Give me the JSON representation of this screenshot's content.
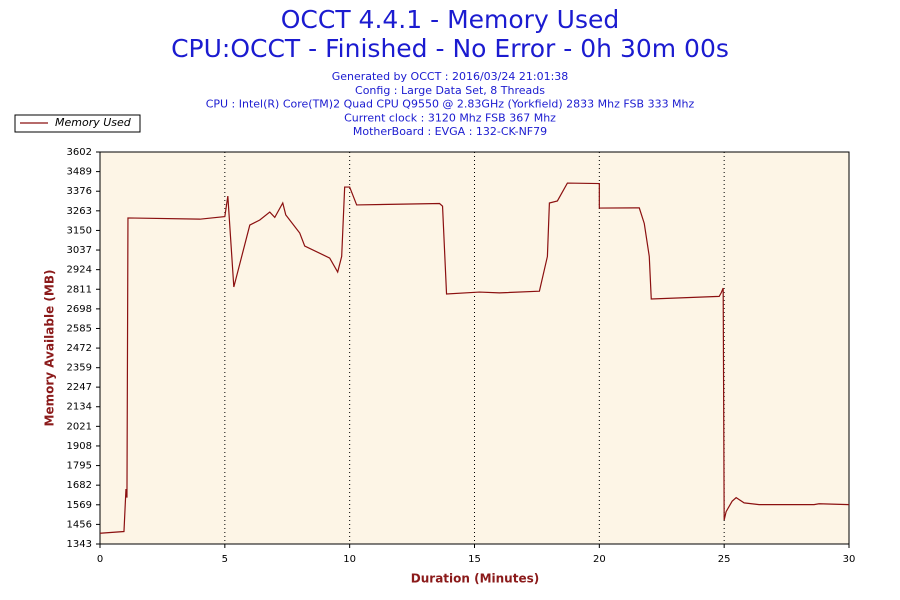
{
  "chart_data": {
    "type": "line",
    "title": "OCCT 4.4.1 - Memory Used",
    "subtitle": "CPU:OCCT - Finished - No Error - 0h 30m 00s",
    "info": [
      "Generated by OCCT : 2016/03/24 21:01:38",
      "Config : Large Data Set, 8 Threads",
      "CPU : Intel(R) Core(TM)2 Quad CPU Q9550 @ 2.83GHz (Yorkfield) 2833 Mhz FSB 333 Mhz",
      "Current clock : 3120 Mhz FSB 367 Mhz",
      "MotherBoard : EVGA : 132-CK-NF79"
    ],
    "x_label": "Duration (Minutes)",
    "y_label": "Memory Available (MB)",
    "x": [
      0,
      0.96,
      1.04,
      1.08,
      1.12,
      4.0,
      5.0,
      5.12,
      5.36,
      6.0,
      6.4,
      6.8,
      7.0,
      7.32,
      7.44,
      8.0,
      8.2,
      9.2,
      9.52,
      9.68,
      9.8,
      10.0,
      10.28,
      13.6,
      13.72,
      13.88,
      15.2,
      16.0,
      17.6,
      17.92,
      18.0,
      18.32,
      18.72,
      20.0,
      20.0,
      21.6,
      21.8,
      22.0,
      22.08,
      24.8,
      24.88,
      24.96,
      25.0,
      25.08,
      25.32,
      25.48,
      25.8,
      26.4,
      28.6,
      28.8,
      30
    ],
    "series": [
      {
        "name": "Memory Used",
        "color": "#8b1010",
        "values": [
          1405,
          1415,
          1660,
          1610,
          3222,
          3215,
          3230,
          3348,
          2824,
          3181,
          3210,
          3256,
          3225,
          3308,
          3240,
          3135,
          3060,
          2991,
          2910,
          3000,
          3400,
          3400,
          3297,
          3305,
          3290,
          2784,
          2795,
          2790,
          2800,
          3000,
          3308,
          3320,
          3423,
          3420,
          3279,
          3280,
          3190,
          3000,
          2755,
          2770,
          2790,
          2818,
          1481,
          1530,
          1590,
          1610,
          1580,
          1570,
          1570,
          1575,
          1570
        ]
      }
    ],
    "xlim": [
      0,
      30
    ],
    "xticks": [
      0,
      5,
      10,
      15,
      20,
      25,
      30
    ],
    "ylim": [
      1343,
      3602
    ],
    "yticks": [
      1343,
      1456,
      1569,
      1682,
      1795,
      1908,
      2021,
      2134,
      2247,
      2359,
      2472,
      2585,
      2698,
      2811,
      2924,
      3037,
      3150,
      3263,
      3376,
      3489,
      3602
    ],
    "grid": "x",
    "legend": "top-left"
  }
}
